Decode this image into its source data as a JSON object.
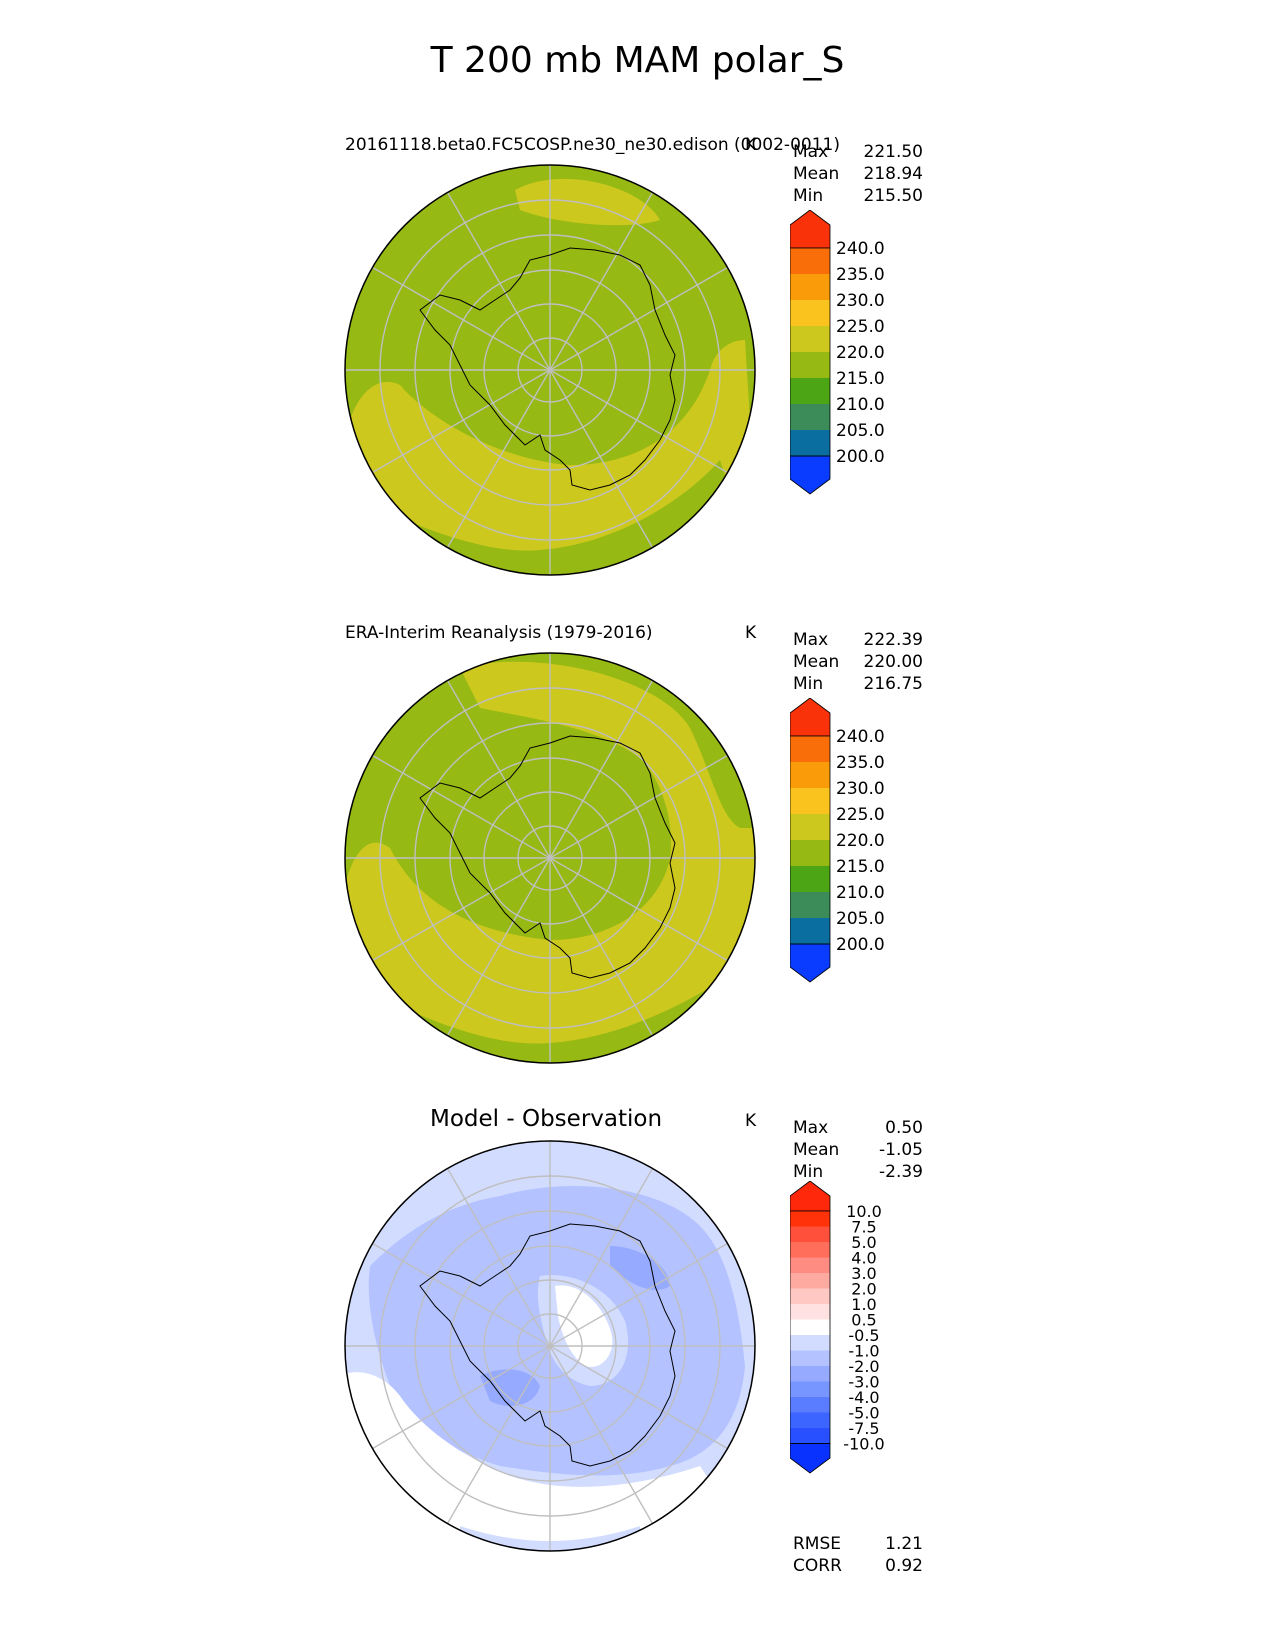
{
  "title": "T 200 mb MAM polar_S",
  "panels": [
    {
      "title": "20161118.beta0.FC5COSP.ne30_ne30.edison (0002-0011)",
      "unit": "K",
      "stats": [
        {
          "label": "Max",
          "value": "221.50"
        },
        {
          "label": "Mean",
          "value": "218.94"
        },
        {
          "label": "Min",
          "value": "215.50"
        }
      ],
      "colorbar": {
        "levels": [
          "200.0",
          "205.0",
          "210.0",
          "215.0",
          "220.0",
          "225.0",
          "230.0",
          "235.0",
          "240.0"
        ],
        "colors": [
          "#0a3cff",
          "#0a6ea0",
          "#3c8c5a",
          "#4ba514",
          "#96b914",
          "#cdc81e",
          "#fac31e",
          "#fa9b0a",
          "#fa6e0a",
          "#fa320a"
        ]
      }
    },
    {
      "title": "ERA-Interim Reanalysis (1979-2016)",
      "unit": "K",
      "stats": [
        {
          "label": "Max",
          "value": "222.39"
        },
        {
          "label": "Mean",
          "value": "220.00"
        },
        {
          "label": "Min",
          "value": "216.75"
        }
      ],
      "colorbar": {
        "levels": [
          "200.0",
          "205.0",
          "210.0",
          "215.0",
          "220.0",
          "225.0",
          "230.0",
          "235.0",
          "240.0"
        ],
        "colors": [
          "#0a3cff",
          "#0a6ea0",
          "#3c8c5a",
          "#4ba514",
          "#96b914",
          "#cdc81e",
          "#fac31e",
          "#fa9b0a",
          "#fa6e0a",
          "#fa320a"
        ]
      }
    },
    {
      "title": "Model - Observation",
      "unit": "K",
      "stats": [
        {
          "label": "Max",
          "value": "0.50"
        },
        {
          "label": "Mean",
          "value": "-1.05"
        },
        {
          "label": "Min",
          "value": "-2.39"
        }
      ],
      "extra_stats": [
        {
          "label": "RMSE",
          "value": "1.21"
        },
        {
          "label": "CORR",
          "value": "0.92"
        }
      ],
      "colorbar": {
        "levels": [
          "-10.0",
          "-7.5",
          "-5.0",
          "-4.0",
          "-3.0",
          "-2.0",
          "-1.0",
          "-0.5",
          "0.5",
          "1.0",
          "2.0",
          "3.0",
          "4.0",
          "5.0",
          "7.5",
          "10.0"
        ],
        "colors": [
          "#0a32ff",
          "#2850ff",
          "#3c64ff",
          "#5a7dff",
          "#7896ff",
          "#96aaff",
          "#b4c3ff",
          "#d2dcff",
          "#ffffff",
          "#ffe1e1",
          "#ffc8c3",
          "#ffaaa0",
          "#ff8c82",
          "#ff6e5a",
          "#ff503c",
          "#ff320a",
          "#ff280a"
        ]
      }
    }
  ]
}
